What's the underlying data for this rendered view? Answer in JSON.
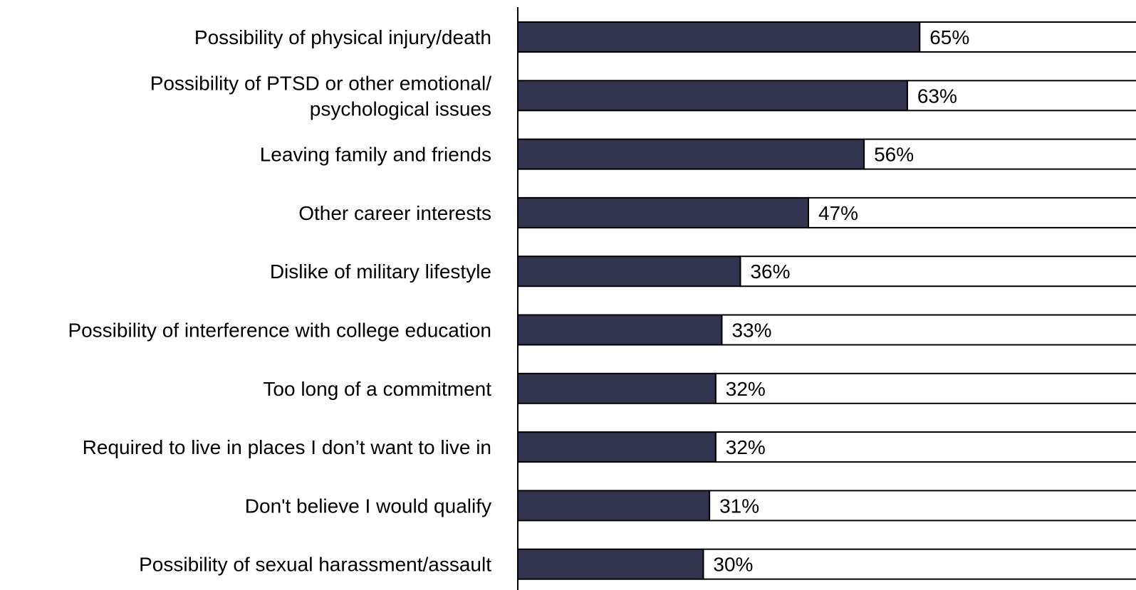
{
  "chart_data": {
    "type": "bar",
    "orientation": "horizontal",
    "categories": [
      [
        "Possibility of physical injury/death"
      ],
      [
        "Possibility of PTSD or other emotional/",
        "psychological issues"
      ],
      [
        "Leaving family and friends"
      ],
      [
        "Other career interests"
      ],
      [
        "Dislike of military lifestyle"
      ],
      [
        "Possibility of interference with college education"
      ],
      [
        "Too long of a commitment"
      ],
      [
        "Required to live in places I don’t want to live in"
      ],
      [
        "Don't believe I would qualify"
      ],
      [
        "Possibility of sexual harassment/assault"
      ]
    ],
    "values": [
      65,
      63,
      56,
      47,
      36,
      33,
      32,
      32,
      31,
      30
    ],
    "data_labels": [
      "65%",
      "63%",
      "56%",
      "47%",
      "36%",
      "33%",
      "32%",
      "32%",
      "31%",
      "30%"
    ],
    "xlim": [
      0,
      100
    ],
    "title": "",
    "xlabel": "",
    "ylabel": "",
    "grid": false,
    "legend": "none",
    "colors": {
      "fill": "#333550",
      "remainder": "#ffffff",
      "outline": "#000000",
      "axis": "#000000"
    }
  }
}
